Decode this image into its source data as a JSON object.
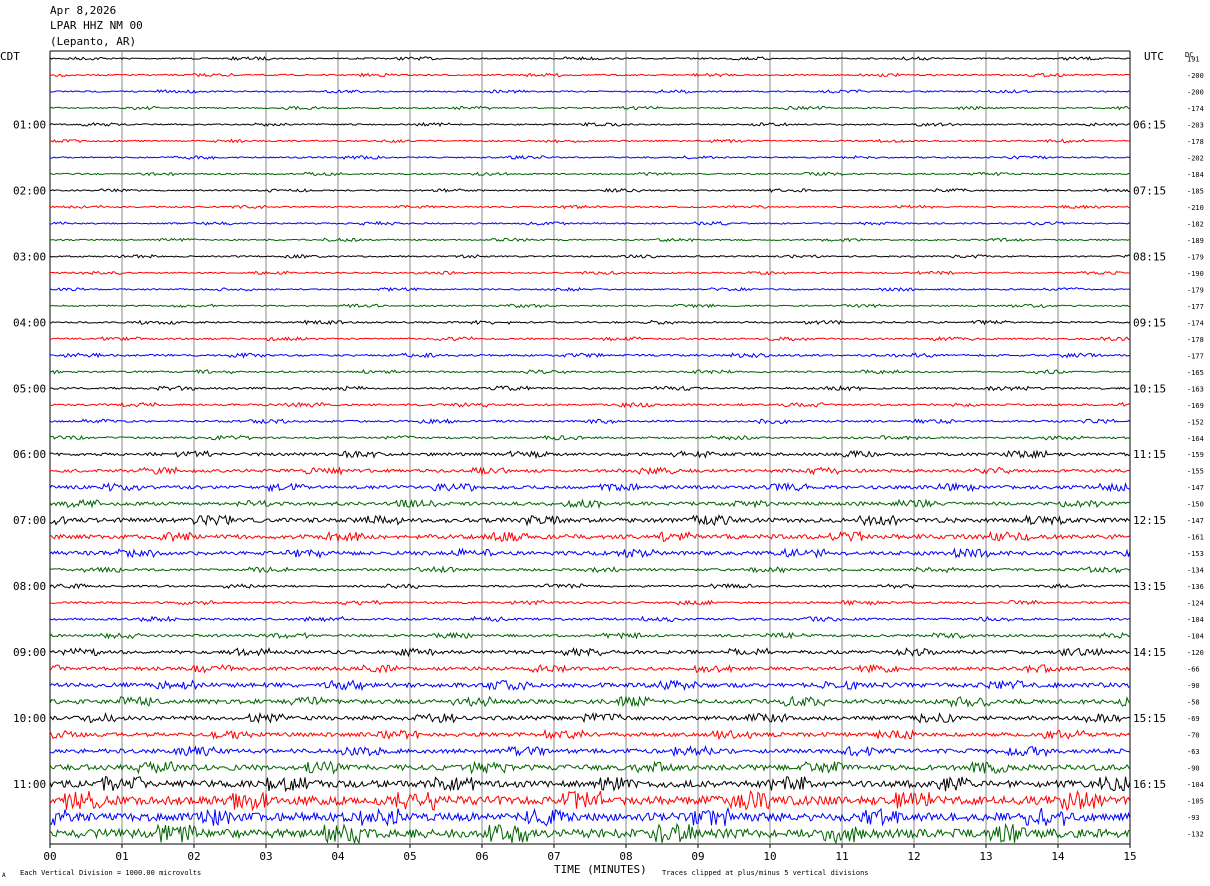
{
  "header": {
    "date": "Apr 8,2026",
    "station": "LPAR HHZ NM 00",
    "location": "(Lepanto, AR)"
  },
  "chart_data": {
    "type": "line",
    "left_timezone": "CDT",
    "right_timezone": "UTC",
    "dc_label": "DC",
    "xlabel": "TIME (MINUTES)",
    "x_ticks": [
      "00",
      "01",
      "02",
      "03",
      "04",
      "05",
      "06",
      "07",
      "08",
      "09",
      "10",
      "11",
      "12",
      "13",
      "14",
      "15"
    ],
    "xlim": [
      0,
      15
    ],
    "left_labels": [
      {
        "row": 4,
        "text": "01:00"
      },
      {
        "row": 8,
        "text": "02:00"
      },
      {
        "row": 12,
        "text": "03:00"
      },
      {
        "row": 16,
        "text": "04:00"
      },
      {
        "row": 20,
        "text": "05:00"
      },
      {
        "row": 24,
        "text": "06:00"
      },
      {
        "row": 28,
        "text": "07:00"
      },
      {
        "row": 32,
        "text": "08:00"
      },
      {
        "row": 36,
        "text": "09:00"
      },
      {
        "row": 40,
        "text": "10:00"
      },
      {
        "row": 44,
        "text": "11:00"
      }
    ],
    "right_labels": [
      {
        "row": 4,
        "text": "06:15"
      },
      {
        "row": 8,
        "text": "07:15"
      },
      {
        "row": 12,
        "text": "08:15"
      },
      {
        "row": 16,
        "text": "09:15"
      },
      {
        "row": 20,
        "text": "10:15"
      },
      {
        "row": 24,
        "text": "11:15"
      },
      {
        "row": 28,
        "text": "12:15"
      },
      {
        "row": 32,
        "text": "13:15"
      },
      {
        "row": 36,
        "text": "14:15"
      },
      {
        "row": 40,
        "text": "15:15"
      },
      {
        "row": 44,
        "text": "16:15"
      }
    ],
    "dc_offsets": [
      "191",
      "-200",
      "-200",
      "-174",
      "-203",
      "-178",
      "-202",
      "-184",
      "-185",
      "-210",
      "-182",
      "-189",
      "-179",
      "-190",
      "-179",
      "-177",
      "-174",
      "-178",
      "-177",
      "-165",
      "-163",
      "-169",
      "-152",
      "-164",
      "-159",
      "-155",
      "-147",
      "-150",
      "-147",
      "-161",
      "-153",
      "-134",
      "-136",
      "-124",
      "-104",
      "-104",
      "-120",
      "-66",
      "-90",
      "-58",
      "-69",
      "-70",
      "-63",
      "-90",
      "-104",
      "-105",
      "-93",
      "-132"
    ],
    "trace_colors": [
      "#000000",
      "#ff0000",
      "#0000ff",
      "#006400"
    ],
    "trace_amplitude": [
      0.6,
      0.6,
      0.6,
      0.6,
      0.6,
      0.6,
      0.6,
      0.6,
      0.6,
      0.6,
      0.6,
      0.6,
      0.6,
      0.6,
      0.6,
      0.6,
      0.7,
      0.7,
      0.8,
      0.7,
      0.8,
      0.8,
      0.8,
      0.8,
      1.2,
      1.3,
      1.4,
      1.4,
      1.8,
      1.8,
      1.6,
      1.0,
      0.8,
      0.8,
      0.9,
      1.0,
      1.4,
      1.4,
      1.8,
      1.8,
      1.7,
      1.6,
      1.8,
      2.2,
      2.8,
      3.6,
      3.4,
      3.6
    ],
    "footer_left": "Each Vertical Division = 1000.00 microvolts",
    "footer_right": "Traces clipped at plus/minus 5 vertical divisions",
    "footer_mark": "A"
  }
}
